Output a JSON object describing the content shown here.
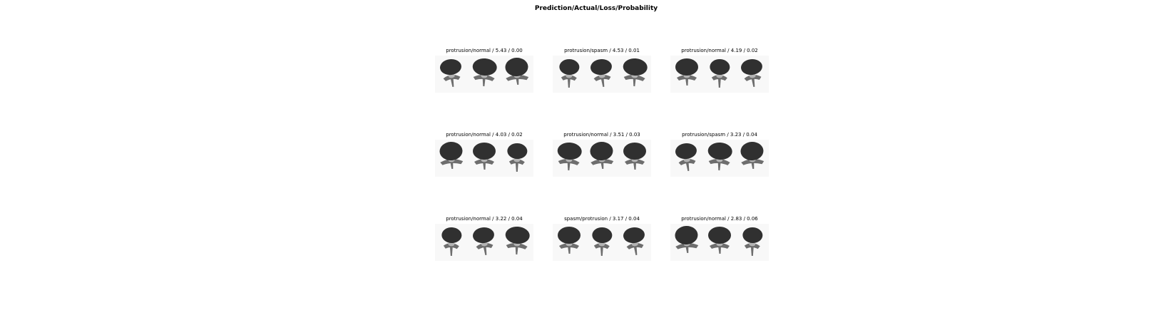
{
  "figure": {
    "title": "Prediction/Actual/Loss/Probability"
  },
  "colors": {
    "body": "#303030",
    "arch": "#6e6e6e",
    "canal": "#b4b4b4",
    "panel_background": "#f8f8f8"
  },
  "panels": [
    {
      "label": "protrusion/normal / 5.43 / 0.00"
    },
    {
      "label": "protrusion/spasm / 4.53 / 0.01"
    },
    {
      "label": "protrusion/normal / 4.19 / 0.02"
    },
    {
      "label": "protrusion/normal / 4.03 / 0.02"
    },
    {
      "label": "protrusion/normal / 3.51 / 0.03"
    },
    {
      "label": "protrusion/spasm / 3.23 / 0.04"
    },
    {
      "label": "protrusion/normal / 3.22 / 0.04"
    },
    {
      "label": "spasm/protrusion / 3.17 / 0.04"
    },
    {
      "label": "protrusion/normal / 2.83 / 0.06"
    }
  ]
}
